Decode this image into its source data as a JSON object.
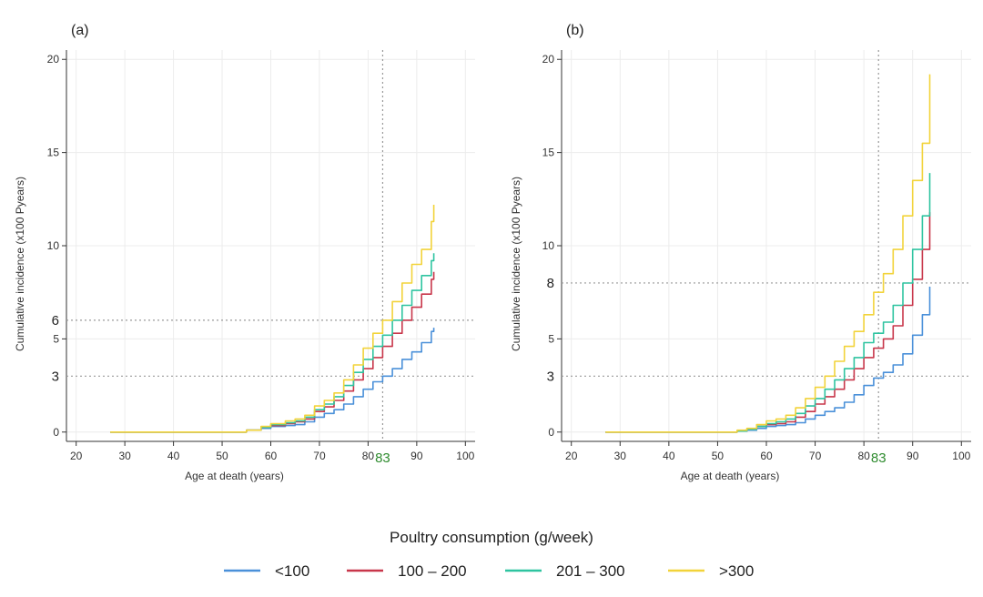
{
  "legend": {
    "title": "Poultry consumption (g/week)",
    "items": [
      {
        "label": "<100",
        "color": "#4a90d9"
      },
      {
        "label": "100 – 200",
        "color": "#c8364a"
      },
      {
        "label": "201 – 300",
        "color": "#2ec4a0"
      },
      {
        "label": ">300",
        "color": "#f2d33a"
      }
    ]
  },
  "chart_data": [
    {
      "type": "line",
      "panel_label": "(a)",
      "xlabel": "Age at death (years)",
      "ylabel": "Cumulative incidence (x100 Pyears)",
      "xlim": [
        18,
        102
      ],
      "ylim": [
        -0.5,
        20.5
      ],
      "xticks": [
        20,
        30,
        40,
        50,
        60,
        70,
        80,
        90,
        100
      ],
      "yticks": [
        0,
        5,
        10,
        15,
        20
      ],
      "grid": true,
      "ref_lines": {
        "vertical": [
          {
            "x": 83,
            "label": "83",
            "label_color": "#2e8b2e"
          }
        ],
        "horizontal": [
          {
            "y": 6,
            "label": "6"
          },
          {
            "y": 3,
            "label": "3"
          }
        ]
      },
      "series": [
        {
          "name": "<100",
          "color": "#4a90d9",
          "x": [
            27,
            40,
            50,
            55,
            58,
            60,
            63,
            65,
            67,
            69,
            71,
            73,
            75,
            77,
            79,
            81,
            83,
            85,
            87,
            89,
            91,
            93,
            93.5
          ],
          "y": [
            0,
            0,
            0,
            0.1,
            0.2,
            0.3,
            0.35,
            0.4,
            0.55,
            0.8,
            1.0,
            1.2,
            1.5,
            1.9,
            2.3,
            2.7,
            3.0,
            3.4,
            3.9,
            4.3,
            4.8,
            5.4,
            5.6
          ]
        },
        {
          "name": "100 – 200",
          "color": "#c8364a",
          "x": [
            27,
            40,
            50,
            55,
            58,
            60,
            63,
            65,
            67,
            69,
            71,
            73,
            75,
            77,
            79,
            81,
            83,
            85,
            87,
            89,
            91,
            93,
            93.5
          ],
          "y": [
            0,
            0,
            0,
            0.1,
            0.25,
            0.35,
            0.45,
            0.55,
            0.7,
            1.1,
            1.35,
            1.7,
            2.2,
            2.8,
            3.4,
            4.0,
            4.6,
            5.3,
            6.0,
            6.7,
            7.4,
            8.2,
            8.6
          ]
        },
        {
          "name": "201 – 300",
          "color": "#2ec4a0",
          "x": [
            27,
            40,
            50,
            55,
            58,
            60,
            63,
            65,
            67,
            69,
            71,
            73,
            75,
            77,
            79,
            81,
            83,
            85,
            87,
            89,
            91,
            93,
            93.5
          ],
          "y": [
            0,
            0,
            0,
            0.1,
            0.25,
            0.4,
            0.5,
            0.6,
            0.8,
            1.2,
            1.5,
            1.9,
            2.5,
            3.2,
            3.9,
            4.6,
            5.2,
            6.0,
            6.8,
            7.6,
            8.4,
            9.2,
            9.6
          ]
        },
        {
          "name": ">300",
          "color": "#f2d33a",
          "x": [
            27,
            40,
            50,
            55,
            58,
            60,
            63,
            65,
            67,
            69,
            71,
            73,
            75,
            77,
            79,
            81,
            83,
            85,
            87,
            89,
            91,
            93,
            93.5
          ],
          "y": [
            0,
            0,
            0,
            0.1,
            0.3,
            0.45,
            0.6,
            0.7,
            0.9,
            1.4,
            1.7,
            2.1,
            2.8,
            3.6,
            4.5,
            5.3,
            6.0,
            7.0,
            8.0,
            9.0,
            9.8,
            11.3,
            12.2
          ]
        }
      ]
    },
    {
      "type": "line",
      "panel_label": "(b)",
      "xlabel": "Age at death (years)",
      "ylabel": "Cumulative incidence (x100 Pyears)",
      "xlim": [
        18,
        102
      ],
      "ylim": [
        -0.5,
        20.5
      ],
      "xticks": [
        20,
        30,
        40,
        50,
        60,
        70,
        80,
        90,
        100
      ],
      "yticks": [
        0,
        5,
        10,
        15,
        20
      ],
      "grid": true,
      "ref_lines": {
        "vertical": [
          {
            "x": 83,
            "label": "83",
            "label_color": "#2e8b2e"
          }
        ],
        "horizontal": [
          {
            "y": 8,
            "label": "8"
          },
          {
            "y": 3,
            "label": "3"
          }
        ]
      },
      "series": [
        {
          "name": "<100",
          "color": "#4a90d9",
          "x": [
            27,
            40,
            50,
            54,
            56,
            58,
            60,
            62,
            64,
            66,
            68,
            70,
            72,
            74,
            76,
            78,
            80,
            82,
            84,
            86,
            88,
            90,
            92,
            93.5
          ],
          "y": [
            0,
            0,
            0,
            0.05,
            0.1,
            0.2,
            0.3,
            0.35,
            0.4,
            0.5,
            0.7,
            0.9,
            1.1,
            1.3,
            1.6,
            2.0,
            2.5,
            2.9,
            3.2,
            3.6,
            4.2,
            5.2,
            6.3,
            7.8
          ]
        },
        {
          "name": "100 – 200",
          "color": "#c8364a",
          "x": [
            27,
            40,
            50,
            54,
            56,
            58,
            60,
            62,
            64,
            66,
            68,
            70,
            72,
            74,
            76,
            78,
            80,
            82,
            84,
            86,
            88,
            90,
            92,
            93.5
          ],
          "y": [
            0,
            0,
            0,
            0.05,
            0.15,
            0.3,
            0.4,
            0.45,
            0.55,
            0.8,
            1.1,
            1.5,
            1.9,
            2.3,
            2.8,
            3.4,
            4.0,
            4.5,
            5.0,
            5.7,
            6.8,
            8.2,
            9.8,
            11.8
          ]
        },
        {
          "name": "201 – 300",
          "color": "#2ec4a0",
          "x": [
            27,
            40,
            50,
            54,
            56,
            58,
            60,
            62,
            64,
            66,
            68,
            70,
            72,
            74,
            76,
            78,
            80,
            82,
            84,
            86,
            88,
            90,
            92,
            93.5
          ],
          "y": [
            0,
            0,
            0,
            0.05,
            0.15,
            0.3,
            0.45,
            0.55,
            0.7,
            1.0,
            1.4,
            1.8,
            2.3,
            2.8,
            3.4,
            4.0,
            4.8,
            5.3,
            5.9,
            6.8,
            8.0,
            9.8,
            11.6,
            13.9
          ]
        },
        {
          "name": ">300",
          "color": "#f2d33a",
          "x": [
            27,
            40,
            50,
            54,
            56,
            58,
            60,
            62,
            64,
            66,
            68,
            70,
            72,
            74,
            76,
            78,
            80,
            82,
            84,
            86,
            88,
            90,
            92,
            93.5
          ],
          "y": [
            0,
            0,
            0,
            0.1,
            0.2,
            0.4,
            0.6,
            0.7,
            0.9,
            1.3,
            1.8,
            2.4,
            3.0,
            3.8,
            4.6,
            5.4,
            6.3,
            7.5,
            8.5,
            9.8,
            11.6,
            13.5,
            15.5,
            19.2
          ]
        }
      ]
    }
  ]
}
